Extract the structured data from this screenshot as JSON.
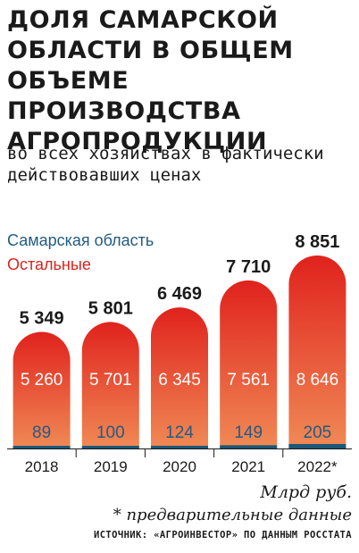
{
  "title": "ДОЛЯ САМАРСКОЙ ОБЛАСТИ В ОБЩЕМ ОБЪЕМЕ ПРОИЗВОДСТВА АГРОПРОДУКЦИИ",
  "subtitle": "во всех хозяйствах в фактически действовавших ценах",
  "legend": {
    "samara": "Самарская область",
    "other": "Остальные"
  },
  "colors": {
    "samara": "#1d5877",
    "samara_text": "#235b83",
    "other_top": "#e0221d",
    "other_bottom": "#f08a55",
    "other_legend": "#d9241e"
  },
  "unit": "Млрд руб.",
  "footnote": "* предварительные данные",
  "source": "ИСТОЧНИК: «АГРОИНВЕСТОР» ПО ДАННЫМ РОССТАТА",
  "chart_data": {
    "type": "bar",
    "stacked": true,
    "categories": [
      "2018",
      "2019",
      "2020",
      "2021",
      "2022*"
    ],
    "series": [
      {
        "name": "Самарская область",
        "values": [
          89,
          100,
          124,
          149,
          205
        ]
      },
      {
        "name": "Остальные",
        "values": [
          5260,
          5701,
          6345,
          7561,
          8646
        ]
      }
    ],
    "totals": [
      "5 349",
      "5 801",
      "6 469",
      "7 710",
      "8 851"
    ],
    "value_labels": {
      "samara": [
        "89",
        "100",
        "124",
        "149",
        "205"
      ],
      "other": [
        "5 260",
        "5 701",
        "6 345",
        "7 561",
        "8 646"
      ]
    },
    "ylabel": "Млрд руб.",
    "ylim": [
      0,
      8851
    ],
    "grid": false
  }
}
